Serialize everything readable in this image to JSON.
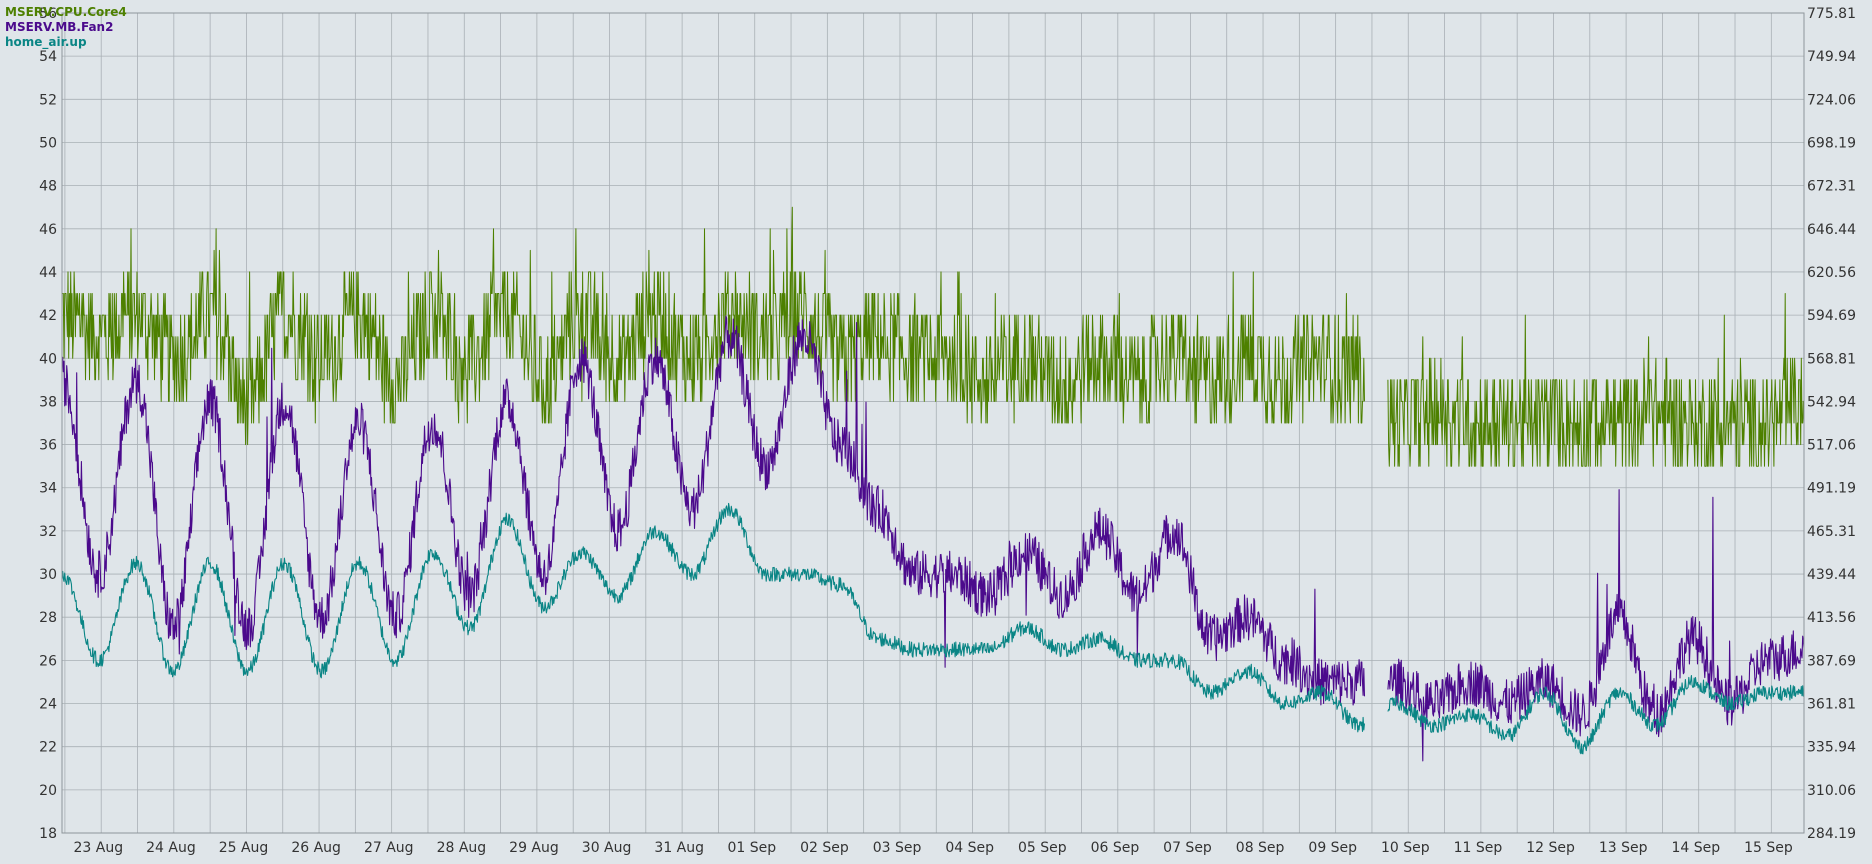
{
  "chart_data": {
    "type": "line",
    "colors": {
      "background": "#dfe5e9",
      "grid": "#a9b0b5",
      "axis_text": "#333333"
    },
    "legend": {
      "placement": "top-left",
      "entries": [
        "MSERV.CPU.Core4",
        "MSERV.MB.Fan2",
        "home_air.up"
      ]
    },
    "grid": true,
    "x_axis": {
      "ticks": [
        "23 Aug",
        "24 Aug",
        "25 Aug",
        "26 Aug",
        "27 Aug",
        "28 Aug",
        "29 Aug",
        "30 Aug",
        "31 Aug",
        "01 Sep",
        "02 Sep",
        "03 Sep",
        "04 Sep",
        "05 Sep",
        "06 Sep",
        "07 Sep",
        "08 Sep",
        "09 Sep",
        "10 Sep",
        "11 Sep",
        "12 Sep",
        "13 Sep",
        "14 Sep",
        "15 Sep"
      ],
      "range_days": [
        -0.54,
        23.45
      ]
    },
    "y_left": {
      "ylim": [
        18,
        56
      ],
      "ticks": [
        "18",
        "20",
        "22",
        "24",
        "26",
        "28",
        "30",
        "32",
        "34",
        "36",
        "38",
        "40",
        "42",
        "44",
        "46",
        "48",
        "50",
        "52",
        "54",
        "56"
      ]
    },
    "y_right": {
      "ylim": [
        284.19,
        775.81
      ],
      "ticks": [
        "284.19",
        "310.06",
        "335.94",
        "361.81",
        "387.69",
        "413.56",
        "439.44",
        "465.31",
        "491.19",
        "517.06",
        "542.94",
        "568.81",
        "594.69",
        "620.56",
        "646.44",
        "672.31",
        "698.19",
        "724.06",
        "749.94",
        "775.81"
      ]
    },
    "gap_days": [
      17.4,
      17.72
    ],
    "series": [
      {
        "name": "MSERV.CPU.Core4",
        "axis": "left",
        "color": "#4d8000",
        "noise": 2.4,
        "spike_rate": 0.05,
        "spike_amp": 4,
        "quantize": 1,
        "values": [
          42,
          41,
          42,
          40,
          42,
          38,
          42,
          40,
          42,
          39,
          42,
          40,
          42,
          39,
          42,
          40,
          42,
          40,
          42,
          41,
          42,
          40,
          41,
          40,
          40,
          39,
          40,
          39,
          40,
          39,
          40,
          39,
          40,
          39,
          40,
          39,
          37,
          37.5,
          37,
          37,
          37,
          37,
          37,
          37.5,
          37,
          37,
          37,
          38
        ]
      },
      {
        "name": "MSERV.MB.Fan2",
        "axis": "left",
        "color": "#4b0a8c",
        "noise": 1.1,
        "spike_rate": 0.012,
        "spike_amp": 8,
        "quantize": 0,
        "values": [
          39,
          30,
          39,
          27.5,
          38,
          27.5,
          38,
          28,
          37,
          28,
          37,
          29,
          38,
          30,
          40,
          32,
          40,
          33,
          41,
          35,
          41,
          36,
          33,
          30,
          30,
          29,
          31,
          29,
          32,
          29,
          32,
          27,
          28,
          26,
          25,
          25,
          25,
          24,
          25,
          24,
          25,
          23.5,
          28,
          23.5,
          27,
          24,
          26,
          26.5
        ]
      },
      {
        "name": "home_air.up",
        "axis": "left",
        "color": "#0a8585",
        "noise": 0.35,
        "spike_rate": 0,
        "spike_amp": 0,
        "quantize": 0,
        "values": [
          30,
          26,
          30.5,
          25.5,
          30.5,
          25.5,
          30.5,
          25.5,
          30.5,
          26,
          31,
          27.5,
          32.5,
          28.5,
          31,
          29,
          32,
          30,
          33,
          30,
          30,
          29.5,
          27,
          26.5,
          26.5,
          26.5,
          27.5,
          26.5,
          27,
          26,
          26,
          24.5,
          25.5,
          24,
          24.5,
          23,
          24,
          23,
          23.5,
          22.5,
          24.5,
          22,
          24.5,
          23,
          25,
          24,
          24.5,
          24.5
        ]
      }
    ]
  }
}
